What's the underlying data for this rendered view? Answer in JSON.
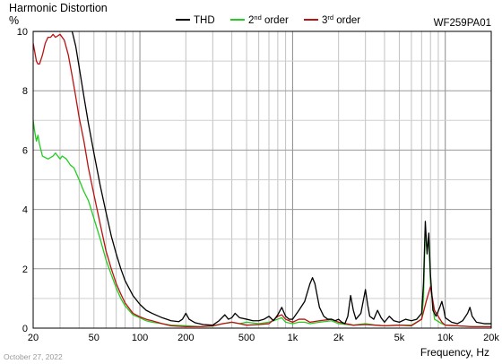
{
  "header": {
    "title": "Harmonic Distortion",
    "unit": "%",
    "model": "WF259PA01",
    "xlabel": "Frequency, Hz",
    "date": "October 27, 2022"
  },
  "legend": [
    {
      "base": "THD",
      "sup": "",
      "tail": "",
      "color": "#000000"
    },
    {
      "base": "2",
      "sup": "nd",
      "tail": " order",
      "color": "#22cc22"
    },
    {
      "base": "3",
      "sup": "rd",
      "tail": " order",
      "color": "#bb1111"
    }
  ],
  "chart_data": {
    "type": "line",
    "title": "Harmonic Distortion",
    "xlabel": "Frequency, Hz",
    "ylabel": "%",
    "x_scale": "log",
    "xlim": [
      20,
      20000
    ],
    "ylim": [
      0,
      10
    ],
    "grid": true,
    "legend_position": "top",
    "x_ticks": [
      20,
      50,
      100,
      200,
      500,
      1000,
      2000,
      5000,
      10000,
      20000
    ],
    "x_tick_labels": [
      "20",
      "50",
      "100",
      "200",
      "500",
      "1k",
      "2k",
      "5k",
      "10k",
      "20k"
    ],
    "y_ticks": [
      0,
      2,
      4,
      6,
      8,
      10
    ],
    "series": [
      {
        "name": "THD",
        "color": "#000000",
        "points": [
          [
            20,
            10
          ],
          [
            26,
            10
          ],
          [
            30,
            10
          ],
          [
            34,
            10
          ],
          [
            36,
            10
          ],
          [
            38,
            9.5
          ],
          [
            40,
            8.8
          ],
          [
            43,
            7.8
          ],
          [
            46,
            6.9
          ],
          [
            50,
            5.9
          ],
          [
            55,
            4.8
          ],
          [
            60,
            3.9
          ],
          [
            65,
            3.1
          ],
          [
            70,
            2.5
          ],
          [
            75,
            2.0
          ],
          [
            80,
            1.6
          ],
          [
            90,
            1.1
          ],
          [
            100,
            0.8
          ],
          [
            110,
            0.6
          ],
          [
            120,
            0.5
          ],
          [
            140,
            0.35
          ],
          [
            160,
            0.25
          ],
          [
            180,
            0.22
          ],
          [
            190,
            0.3
          ],
          [
            200,
            0.5
          ],
          [
            210,
            0.3
          ],
          [
            230,
            0.18
          ],
          [
            260,
            0.12
          ],
          [
            300,
            0.1
          ],
          [
            330,
            0.25
          ],
          [
            360,
            0.45
          ],
          [
            380,
            0.3
          ],
          [
            400,
            0.35
          ],
          [
            420,
            0.5
          ],
          [
            450,
            0.35
          ],
          [
            500,
            0.3
          ],
          [
            550,
            0.25
          ],
          [
            600,
            0.25
          ],
          [
            650,
            0.3
          ],
          [
            700,
            0.4
          ],
          [
            750,
            0.25
          ],
          [
            800,
            0.45
          ],
          [
            850,
            0.7
          ],
          [
            900,
            0.4
          ],
          [
            950,
            0.3
          ],
          [
            1000,
            0.3
          ],
          [
            1100,
            0.6
          ],
          [
            1200,
            0.9
          ],
          [
            1300,
            1.5
          ],
          [
            1350,
            1.7
          ],
          [
            1400,
            1.5
          ],
          [
            1500,
            0.7
          ],
          [
            1600,
            0.4
          ],
          [
            1700,
            0.3
          ],
          [
            1800,
            0.3
          ],
          [
            1900,
            0.25
          ],
          [
            2000,
            0.3
          ],
          [
            2100,
            0.2
          ],
          [
            2200,
            0.15
          ],
          [
            2300,
            0.4
          ],
          [
            2400,
            1.1
          ],
          [
            2500,
            0.6
          ],
          [
            2600,
            0.3
          ],
          [
            2800,
            0.5
          ],
          [
            3000,
            1.3
          ],
          [
            3100,
            0.8
          ],
          [
            3200,
            0.4
          ],
          [
            3400,
            0.3
          ],
          [
            3600,
            0.6
          ],
          [
            3800,
            0.35
          ],
          [
            4000,
            0.2
          ],
          [
            4300,
            0.4
          ],
          [
            4600,
            0.25
          ],
          [
            5000,
            0.2
          ],
          [
            5500,
            0.3
          ],
          [
            6000,
            0.25
          ],
          [
            6500,
            0.3
          ],
          [
            7000,
            0.5
          ],
          [
            7200,
            1.5
          ],
          [
            7400,
            3.6
          ],
          [
            7600,
            2.5
          ],
          [
            7800,
            3.2
          ],
          [
            8000,
            1.8
          ],
          [
            8300,
            0.6
          ],
          [
            8700,
            0.4
          ],
          [
            9200,
            0.7
          ],
          [
            9500,
            0.9
          ],
          [
            9800,
            0.6
          ],
          [
            10000,
            0.35
          ],
          [
            11000,
            0.2
          ],
          [
            12000,
            0.15
          ],
          [
            13000,
            0.25
          ],
          [
            14000,
            0.5
          ],
          [
            14500,
            0.7
          ],
          [
            15000,
            0.4
          ],
          [
            16000,
            0.2
          ],
          [
            18000,
            0.15
          ],
          [
            20000,
            0.15
          ]
        ]
      },
      {
        "name": "2nd order",
        "color": "#22cc22",
        "points": [
          [
            20,
            7.0
          ],
          [
            20.5,
            6.6
          ],
          [
            21,
            6.3
          ],
          [
            21.5,
            6.5
          ],
          [
            22,
            6.2
          ],
          [
            23,
            5.8
          ],
          [
            25,
            5.7
          ],
          [
            27,
            5.8
          ],
          [
            28,
            5.9
          ],
          [
            30,
            5.7
          ],
          [
            31,
            5.8
          ],
          [
            33,
            5.7
          ],
          [
            35,
            5.5
          ],
          [
            37,
            5.4
          ],
          [
            40,
            5.0
          ],
          [
            43,
            4.6
          ],
          [
            46,
            4.3
          ],
          [
            50,
            3.7
          ],
          [
            55,
            3.0
          ],
          [
            60,
            2.3
          ],
          [
            65,
            1.8
          ],
          [
            70,
            1.35
          ],
          [
            75,
            1.0
          ],
          [
            80,
            0.75
          ],
          [
            90,
            0.45
          ],
          [
            100,
            0.35
          ],
          [
            110,
            0.25
          ],
          [
            120,
            0.2
          ],
          [
            140,
            0.15
          ],
          [
            160,
            0.1
          ],
          [
            200,
            0.08
          ],
          [
            250,
            0.05
          ],
          [
            300,
            0.07
          ],
          [
            350,
            0.15
          ],
          [
            400,
            0.2
          ],
          [
            450,
            0.15
          ],
          [
            500,
            0.2
          ],
          [
            600,
            0.15
          ],
          [
            700,
            0.2
          ],
          [
            800,
            0.3
          ],
          [
            850,
            0.35
          ],
          [
            900,
            0.2
          ],
          [
            1000,
            0.15
          ],
          [
            1100,
            0.2
          ],
          [
            1200,
            0.2
          ],
          [
            1300,
            0.15
          ],
          [
            1500,
            0.2
          ],
          [
            1800,
            0.25
          ],
          [
            2000,
            0.15
          ],
          [
            2500,
            0.1
          ],
          [
            3000,
            0.15
          ],
          [
            3500,
            0.1
          ],
          [
            4000,
            0.08
          ],
          [
            5000,
            0.1
          ],
          [
            6000,
            0.1
          ],
          [
            7000,
            0.3
          ],
          [
            7200,
            1.0
          ],
          [
            7400,
            3.3
          ],
          [
            7600,
            2.6
          ],
          [
            7800,
            3.0
          ],
          [
            8000,
            1.5
          ],
          [
            8500,
            0.3
          ],
          [
            9500,
            0.15
          ],
          [
            10000,
            0.1
          ],
          [
            12000,
            0.08
          ],
          [
            15000,
            0.05
          ],
          [
            20000,
            0.05
          ]
        ]
      },
      {
        "name": "3rd order",
        "color": "#bb1111",
        "points": [
          [
            20,
            9.6
          ],
          [
            20.5,
            9.3
          ],
          [
            21,
            9.0
          ],
          [
            21.5,
            8.9
          ],
          [
            22,
            8.9
          ],
          [
            23,
            9.2
          ],
          [
            24,
            9.6
          ],
          [
            25,
            9.8
          ],
          [
            26,
            9.8
          ],
          [
            27,
            9.9
          ],
          [
            28,
            9.8
          ],
          [
            30,
            9.9
          ],
          [
            32,
            9.7
          ],
          [
            34,
            9.2
          ],
          [
            36,
            8.5
          ],
          [
            38,
            7.8
          ],
          [
            40,
            7.1
          ],
          [
            43,
            6.3
          ],
          [
            46,
            5.4
          ],
          [
            50,
            4.5
          ],
          [
            55,
            3.5
          ],
          [
            60,
            2.6
          ],
          [
            65,
            2.0
          ],
          [
            70,
            1.5
          ],
          [
            75,
            1.15
          ],
          [
            80,
            0.85
          ],
          [
            90,
            0.5
          ],
          [
            100,
            0.38
          ],
          [
            110,
            0.3
          ],
          [
            120,
            0.25
          ],
          [
            140,
            0.15
          ],
          [
            160,
            0.08
          ],
          [
            200,
            0.05
          ],
          [
            250,
            0.05
          ],
          [
            300,
            0.08
          ],
          [
            350,
            0.15
          ],
          [
            400,
            0.2
          ],
          [
            450,
            0.15
          ],
          [
            500,
            0.1
          ],
          [
            600,
            0.12
          ],
          [
            700,
            0.15
          ],
          [
            800,
            0.4
          ],
          [
            850,
            0.45
          ],
          [
            900,
            0.3
          ],
          [
            1000,
            0.2
          ],
          [
            1100,
            0.3
          ],
          [
            1200,
            0.3
          ],
          [
            1300,
            0.2
          ],
          [
            1500,
            0.25
          ],
          [
            1800,
            0.3
          ],
          [
            2000,
            0.2
          ],
          [
            2500,
            0.1
          ],
          [
            3000,
            0.12
          ],
          [
            3500,
            0.1
          ],
          [
            4000,
            0.08
          ],
          [
            5000,
            0.1
          ],
          [
            6000,
            0.08
          ],
          [
            7000,
            0.3
          ],
          [
            7500,
            0.9
          ],
          [
            8000,
            1.4
          ],
          [
            8500,
            0.6
          ],
          [
            9500,
            0.2
          ],
          [
            10000,
            0.1
          ],
          [
            12000,
            0.08
          ],
          [
            15000,
            0.05
          ],
          [
            20000,
            0.05
          ]
        ]
      }
    ]
  }
}
